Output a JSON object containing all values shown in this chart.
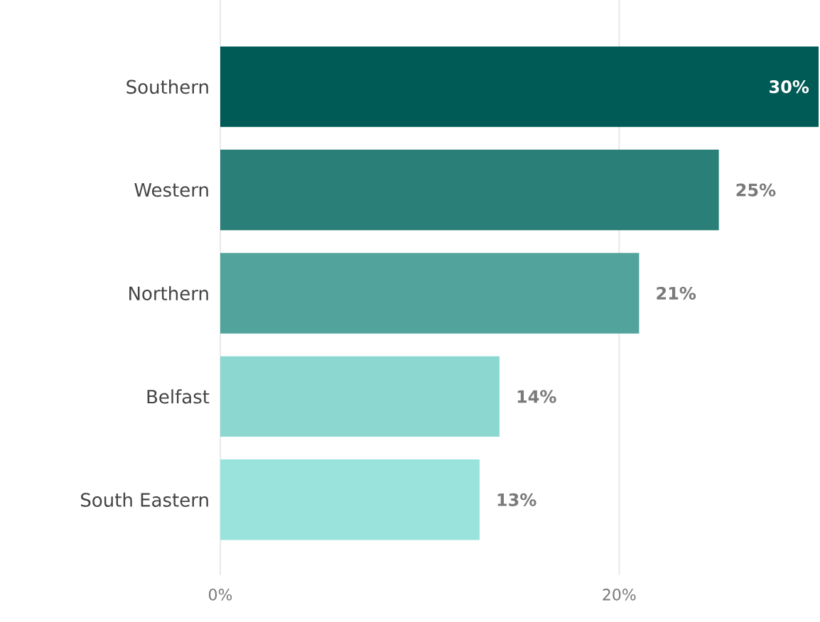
{
  "chart_data": {
    "type": "bar",
    "orientation": "horizontal",
    "categories": [
      "Southern",
      "Western",
      "Northern",
      "Belfast",
      "South Eastern"
    ],
    "values": [
      30,
      25,
      21,
      14,
      13
    ],
    "colors": [
      "#005a55",
      "#2a8078",
      "#52a39c",
      "#8cd8d1",
      "#99e3dc"
    ],
    "value_labels": [
      "30%",
      "25%",
      "21%",
      "14%",
      "13%"
    ],
    "xlim": [
      0,
      30
    ],
    "xticks": [
      {
        "value": 0,
        "label": "0%"
      },
      {
        "value": 20,
        "label": "20%"
      }
    ],
    "grid": "x"
  }
}
